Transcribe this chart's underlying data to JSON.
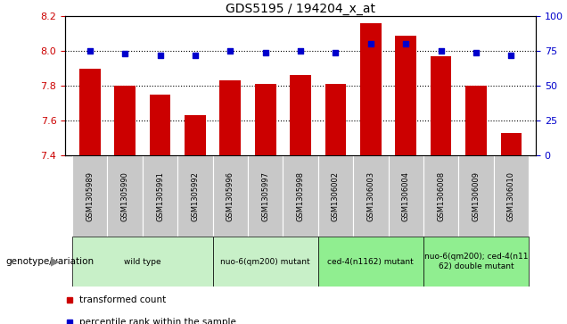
{
  "title": "GDS5195 / 194204_x_at",
  "samples": [
    "GSM1305989",
    "GSM1305990",
    "GSM1305991",
    "GSM1305992",
    "GSM1305996",
    "GSM1305997",
    "GSM1305998",
    "GSM1306002",
    "GSM1306003",
    "GSM1306004",
    "GSM1306008",
    "GSM1306009",
    "GSM1306010"
  ],
  "red_values": [
    7.9,
    7.8,
    7.75,
    7.63,
    7.83,
    7.81,
    7.86,
    7.81,
    8.16,
    8.09,
    7.97,
    7.8,
    7.53
  ],
  "blue_values": [
    75,
    73,
    72,
    72,
    75,
    74,
    75,
    74,
    80,
    80,
    75,
    74,
    72
  ],
  "ylim_left": [
    7.4,
    8.2
  ],
  "ylim_right": [
    0,
    100
  ],
  "yticks_left": [
    7.4,
    7.6,
    7.8,
    8.0,
    8.2
  ],
  "yticks_right": [
    0,
    25,
    50,
    75,
    100
  ],
  "grid_lines": [
    8.0,
    7.8,
    7.6
  ],
  "groups": [
    {
      "label": "wild type",
      "start": 0,
      "end": 4,
      "color": "#c8f0c8"
    },
    {
      "label": "nuo-6(qm200) mutant",
      "start": 4,
      "end": 7,
      "color": "#c8f0c8"
    },
    {
      "label": "ced-4(n1162) mutant",
      "start": 7,
      "end": 10,
      "color": "#90ee90"
    },
    {
      "label": "nuo-6(qm200); ced-4(n11\n62) double mutant",
      "start": 10,
      "end": 13,
      "color": "#90ee90"
    }
  ],
  "bar_color": "#cc0000",
  "dot_color": "#0000cc",
  "tick_bg_color": "#c8c8c8",
  "legend_label_red": "transformed count",
  "legend_label_blue": "percentile rank within the sample",
  "genotype_label": "genotype/variation"
}
